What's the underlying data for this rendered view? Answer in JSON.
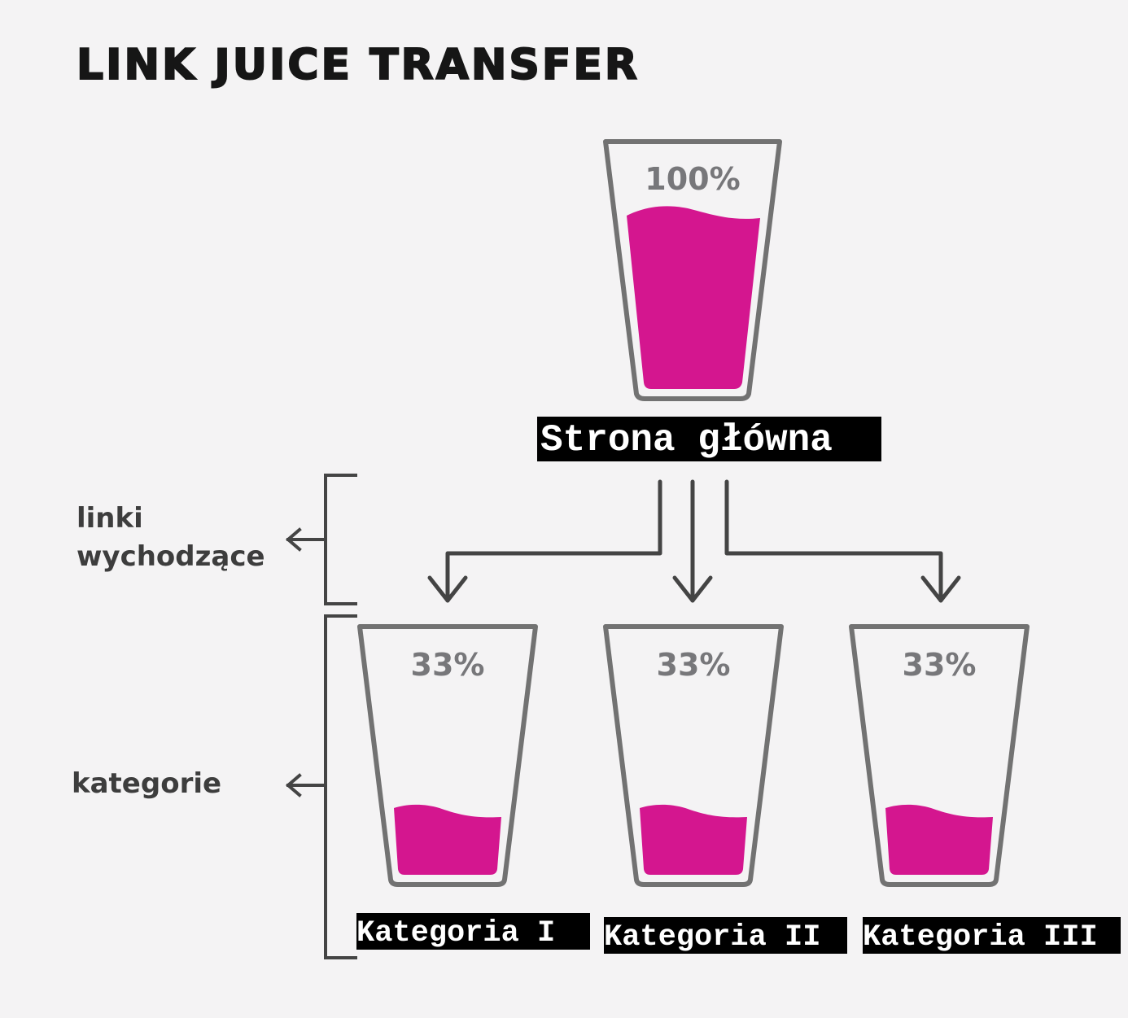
{
  "title": "LINK JUICE TRANSFER",
  "colors": {
    "background": "#f4f3f4",
    "juice": "#d4168f",
    "glass": "#727272",
    "percent_text": "#77777a",
    "arrows": "#444444",
    "label_bg": "#000000",
    "label_text": "#ffffff"
  },
  "home": {
    "percent": "100%",
    "fill_level": 1.0,
    "label": "Strona główna"
  },
  "categories": [
    {
      "percent": "33%",
      "fill_level": 0.33,
      "label": "Kategoria I"
    },
    {
      "percent": "33%",
      "fill_level": 0.33,
      "label": "Kategoria II"
    },
    {
      "percent": "33%",
      "fill_level": 0.33,
      "label": "Kategoria III"
    }
  ],
  "side_labels": {
    "outgoing_links": [
      "linki",
      "wychodzące"
    ],
    "categories": "kategorie"
  }
}
